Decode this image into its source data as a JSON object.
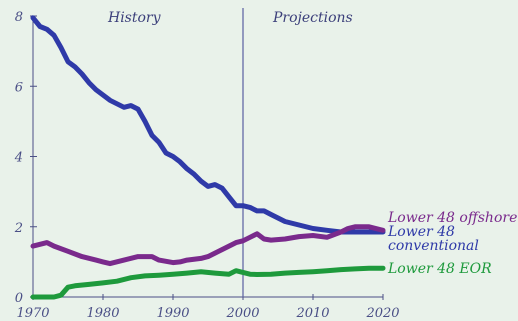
{
  "chart_data": {
    "type": "line",
    "title": "",
    "xlabel": "",
    "ylabel": "",
    "xlim": [
      1970,
      2020
    ],
    "ylim": [
      0,
      8
    ],
    "x_ticks": [
      1970,
      1980,
      1990,
      2000,
      2010,
      2020
    ],
    "y_ticks": [
      0,
      2,
      4,
      6,
      8
    ],
    "divider_x": 2000,
    "annotations": {
      "history": "History",
      "projections": "Projections"
    },
    "grid": false,
    "legend": "labels at right end of each line",
    "series": [
      {
        "name": "Lower 48 conventional",
        "label_lines": [
          "Lower 48",
          "conventional"
        ],
        "color": "#2f3aa8",
        "points": [
          [
            1970,
            7.95
          ],
          [
            1971,
            7.7
          ],
          [
            1972,
            7.62
          ],
          [
            1973,
            7.45
          ],
          [
            1974,
            7.1
          ],
          [
            1975,
            6.7
          ],
          [
            1976,
            6.55
          ],
          [
            1977,
            6.35
          ],
          [
            1978,
            6.1
          ],
          [
            1979,
            5.9
          ],
          [
            1980,
            5.75
          ],
          [
            1981,
            5.6
          ],
          [
            1982,
            5.5
          ],
          [
            1983,
            5.4
          ],
          [
            1984,
            5.45
          ],
          [
            1985,
            5.35
          ],
          [
            1986,
            5.0
          ],
          [
            1987,
            4.6
          ],
          [
            1988,
            4.4
          ],
          [
            1989,
            4.1
          ],
          [
            1990,
            4.0
          ],
          [
            1991,
            3.85
          ],
          [
            1992,
            3.65
          ],
          [
            1993,
            3.5
          ],
          [
            1994,
            3.3
          ],
          [
            1995,
            3.15
          ],
          [
            1996,
            3.2
          ],
          [
            1997,
            3.1
          ],
          [
            1998,
            2.85
          ],
          [
            1999,
            2.6
          ],
          [
            2000,
            2.6
          ],
          [
            2001,
            2.55
          ],
          [
            2002,
            2.45
          ],
          [
            2003,
            2.45
          ],
          [
            2004,
            2.35
          ],
          [
            2005,
            2.25
          ],
          [
            2006,
            2.15
          ],
          [
            2008,
            2.05
          ],
          [
            2010,
            1.95
          ],
          [
            2012,
            1.9
          ],
          [
            2014,
            1.85
          ],
          [
            2016,
            1.85
          ],
          [
            2018,
            1.85
          ],
          [
            2020,
            1.85
          ]
        ]
      },
      {
        "name": "Lower 48 offshore",
        "label_lines": [
          "Lower 48 offshore"
        ],
        "color": "#7a2a8c",
        "points": [
          [
            1970,
            1.45
          ],
          [
            1971,
            1.5
          ],
          [
            1972,
            1.55
          ],
          [
            1973,
            1.45
          ],
          [
            1975,
            1.3
          ],
          [
            1977,
            1.15
          ],
          [
            1979,
            1.05
          ],
          [
            1980,
            1.0
          ],
          [
            1981,
            0.95
          ],
          [
            1983,
            1.05
          ],
          [
            1985,
            1.15
          ],
          [
            1986,
            1.15
          ],
          [
            1987,
            1.15
          ],
          [
            1988,
            1.05
          ],
          [
            1990,
            0.98
          ],
          [
            1991,
            1.0
          ],
          [
            1992,
            1.05
          ],
          [
            1994,
            1.1
          ],
          [
            1995,
            1.15
          ],
          [
            1996,
            1.25
          ],
          [
            1997,
            1.35
          ],
          [
            1998,
            1.45
          ],
          [
            1999,
            1.55
          ],
          [
            2000,
            1.6
          ],
          [
            2001,
            1.7
          ],
          [
            2002,
            1.8
          ],
          [
            2003,
            1.65
          ],
          [
            2004,
            1.62
          ],
          [
            2006,
            1.65
          ],
          [
            2008,
            1.72
          ],
          [
            2010,
            1.75
          ],
          [
            2012,
            1.7
          ],
          [
            2014,
            1.85
          ],
          [
            2015,
            1.95
          ],
          [
            2016,
            2.0
          ],
          [
            2018,
            2.0
          ],
          [
            2020,
            1.9
          ]
        ]
      },
      {
        "name": "Lower 48 EOR",
        "label_lines": [
          "Lower 48 EOR"
        ],
        "color": "#1e9a3c",
        "points": [
          [
            1970,
            0.0
          ],
          [
            1973,
            0.0
          ],
          [
            1974,
            0.05
          ],
          [
            1975,
            0.28
          ],
          [
            1976,
            0.32
          ],
          [
            1978,
            0.36
          ],
          [
            1980,
            0.4
          ],
          [
            1982,
            0.45
          ],
          [
            1984,
            0.55
          ],
          [
            1986,
            0.6
          ],
          [
            1988,
            0.62
          ],
          [
            1990,
            0.65
          ],
          [
            1992,
            0.68
          ],
          [
            1994,
            0.72
          ],
          [
            1996,
            0.68
          ],
          [
            1998,
            0.65
          ],
          [
            1999,
            0.75
          ],
          [
            2000,
            0.7
          ],
          [
            2001,
            0.65
          ],
          [
            2002,
            0.64
          ],
          [
            2004,
            0.65
          ],
          [
            2006,
            0.68
          ],
          [
            2008,
            0.7
          ],
          [
            2010,
            0.72
          ],
          [
            2012,
            0.75
          ],
          [
            2014,
            0.78
          ],
          [
            2016,
            0.8
          ],
          [
            2018,
            0.82
          ],
          [
            2020,
            0.82
          ]
        ]
      }
    ]
  }
}
